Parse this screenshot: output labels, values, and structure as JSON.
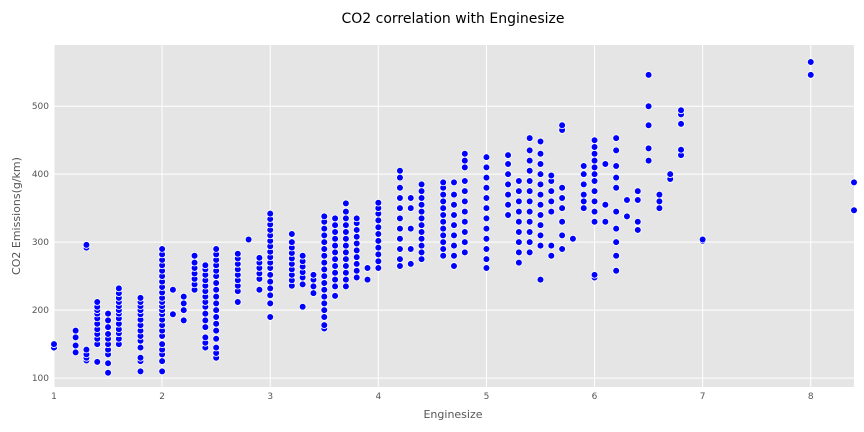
{
  "chart_data": {
    "type": "scatter",
    "title": "CO2 correlation with Enginesize",
    "xlabel": "Enginesize",
    "ylabel": "CO2 Emissions(g/km)",
    "xlim": [
      1.0,
      8.4
    ],
    "ylim": [
      87,
      590
    ],
    "xticks": [
      1,
      2,
      3,
      4,
      5,
      6,
      7,
      8
    ],
    "yticks": [
      100,
      200,
      300,
      400,
      500
    ],
    "grid": true,
    "background": "#e5e5e5",
    "marker_color": "#0000ff",
    "marker_edge_color": "#ffffff",
    "columns": [
      {
        "x": 1.0,
        "y": [
          145,
          150
        ]
      },
      {
        "x": 1.2,
        "y": [
          138,
          148,
          160,
          170
        ]
      },
      {
        "x": 1.3,
        "y": [
          126,
          130,
          135,
          142,
          292,
          296
        ]
      },
      {
        "x": 1.4,
        "y": [
          124,
          150,
          158,
          165,
          172,
          180,
          188,
          195,
          200,
          205,
          212
        ]
      },
      {
        "x": 1.5,
        "y": [
          108,
          122,
          135,
          142,
          150,
          158,
          165,
          175,
          185,
          195
        ]
      },
      {
        "x": 1.6,
        "y": [
          150,
          158,
          166,
          172,
          180,
          188,
          195,
          200,
          206,
          212,
          218,
          225,
          232
        ]
      },
      {
        "x": 1.8,
        "y": [
          110,
          125,
          130,
          145,
          155,
          162,
          170,
          178,
          186,
          194,
          200,
          206,
          212,
          218
        ]
      },
      {
        "x": 2.0,
        "y": [
          110,
          125,
          135,
          142,
          150,
          162,
          170,
          178,
          186,
          194,
          200,
          206,
          212,
          218,
          226,
          234,
          242,
          250,
          258,
          266,
          274,
          282,
          290
        ]
      },
      {
        "x": 2.1,
        "y": [
          194,
          230
        ]
      },
      {
        "x": 2.2,
        "y": [
          185,
          200,
          210,
          220
        ]
      },
      {
        "x": 2.3,
        "y": [
          230,
          238,
          246,
          254,
          262,
          270,
          280
        ]
      },
      {
        "x": 2.4,
        "y": [
          145,
          152,
          160,
          175,
          185,
          195,
          205,
          212,
          220,
          228,
          236,
          244,
          252,
          260,
          266
        ]
      },
      {
        "x": 2.5,
        "y": [
          130,
          137,
          145,
          158,
          170,
          180,
          190,
          200,
          210,
          220,
          230,
          240,
          250,
          258,
          266,
          274,
          282,
          290
        ]
      },
      {
        "x": 2.7,
        "y": [
          212,
          228,
          236,
          244,
          252,
          260,
          268,
          276,
          283
        ]
      },
      {
        "x": 2.8,
        "y": [
          304
        ]
      },
      {
        "x": 2.9,
        "y": [
          230,
          246,
          254,
          262,
          270,
          277
        ]
      },
      {
        "x": 3.0,
        "y": [
          190,
          210,
          222,
          232,
          242,
          252,
          262,
          270,
          278,
          286,
          294,
          302,
          310,
          318,
          326,
          334,
          342
        ]
      },
      {
        "x": 3.2,
        "y": [
          236,
          244,
          252,
          260,
          268,
          276,
          284,
          292,
          300,
          312
        ]
      },
      {
        "x": 3.3,
        "y": [
          205,
          238,
          248,
          256,
          264,
          272,
          280
        ]
      },
      {
        "x": 3.4,
        "y": [
          225,
          235,
          245,
          252
        ]
      },
      {
        "x": 3.5,
        "y": [
          173,
          178,
          190,
          200,
          210,
          220,
          230,
          240,
          250,
          260,
          270,
          280,
          290,
          300,
          310,
          320,
          330,
          338
        ]
      },
      {
        "x": 3.6,
        "y": [
          221,
          235,
          245,
          255,
          265,
          275,
          285,
          295,
          305,
          315,
          325,
          335
        ]
      },
      {
        "x": 3.7,
        "y": [
          235,
          245,
          255,
          265,
          275,
          285,
          295,
          305,
          315,
          325,
          335,
          345,
          357
        ]
      },
      {
        "x": 3.8,
        "y": [
          248,
          258,
          268,
          278,
          288,
          298,
          308,
          318,
          328,
          335
        ]
      },
      {
        "x": 3.9,
        "y": [
          245,
          262
        ]
      },
      {
        "x": 4.0,
        "y": [
          262,
          272,
          282,
          292,
          302,
          312,
          322,
          332,
          342,
          350,
          358
        ]
      },
      {
        "x": 4.2,
        "y": [
          265,
          275,
          290,
          305,
          320,
          335,
          350,
          365,
          380,
          395,
          405
        ]
      },
      {
        "x": 4.3,
        "y": [
          268,
          290,
          320,
          350,
          365
        ]
      },
      {
        "x": 4.4,
        "y": [
          275,
          285,
          295,
          305,
          315,
          325,
          335,
          345,
          355,
          365,
          375,
          385
        ]
      },
      {
        "x": 4.6,
        "y": [
          280,
          290,
          300,
          310,
          320,
          330,
          340,
          350,
          360,
          370,
          380,
          388
        ]
      },
      {
        "x": 4.7,
        "y": [
          265,
          280,
          295,
          310,
          325,
          340,
          355,
          370,
          388
        ]
      },
      {
        "x": 4.8,
        "y": [
          285,
          300,
          315,
          330,
          345,
          360,
          375,
          390,
          410,
          420,
          430
        ]
      },
      {
        "x": 5.0,
        "y": [
          262,
          275,
          290,
          305,
          320,
          335,
          350,
          365,
          380,
          395,
          410,
          425
        ]
      },
      {
        "x": 5.2,
        "y": [
          340,
          355,
          370,
          385,
          400,
          415,
          428
        ]
      },
      {
        "x": 5.3,
        "y": [
          270,
          285,
          300,
          315,
          330,
          345,
          360,
          375,
          390
        ]
      },
      {
        "x": 5.4,
        "y": [
          285,
          300,
          315,
          330,
          345,
          360,
          375,
          390,
          405,
          420,
          435,
          453
        ]
      },
      {
        "x": 5.5,
        "y": [
          245,
          295,
          310,
          325,
          340,
          355,
          370,
          385,
          400,
          415,
          430,
          448
        ]
      },
      {
        "x": 5.6,
        "y": [
          280,
          295,
          345,
          360,
          375,
          390,
          398
        ]
      },
      {
        "x": 5.7,
        "y": [
          290,
          310,
          330,
          350,
          365,
          380,
          465,
          472
        ]
      },
      {
        "x": 5.8,
        "y": [
          305
        ]
      },
      {
        "x": 5.9,
        "y": [
          350,
          360,
          370,
          385,
          400,
          412
        ]
      },
      {
        "x": 6.0,
        "y": [
          248,
          252,
          330,
          345,
          360,
          375,
          390,
          400,
          410,
          420,
          430,
          440,
          450
        ]
      },
      {
        "x": 6.1,
        "y": [
          330,
          355,
          415
        ]
      },
      {
        "x": 6.2,
        "y": [
          258,
          280,
          300,
          320,
          345,
          380,
          395,
          412,
          435,
          453
        ]
      },
      {
        "x": 6.3,
        "y": [
          338,
          362
        ]
      },
      {
        "x": 6.4,
        "y": [
          318,
          330,
          362,
          375
        ]
      },
      {
        "x": 6.5,
        "y": [
          420,
          438,
          472,
          500,
          546
        ]
      },
      {
        "x": 6.6,
        "y": [
          350,
          360,
          370
        ]
      },
      {
        "x": 6.7,
        "y": [
          393,
          400
        ]
      },
      {
        "x": 6.8,
        "y": [
          428,
          436,
          474,
          488,
          494
        ]
      },
      {
        "x": 7.0,
        "y": [
          302,
          304
        ]
      },
      {
        "x": 8.0,
        "y": [
          546,
          565
        ]
      },
      {
        "x": 8.4,
        "y": [
          347,
          388
        ]
      }
    ]
  }
}
